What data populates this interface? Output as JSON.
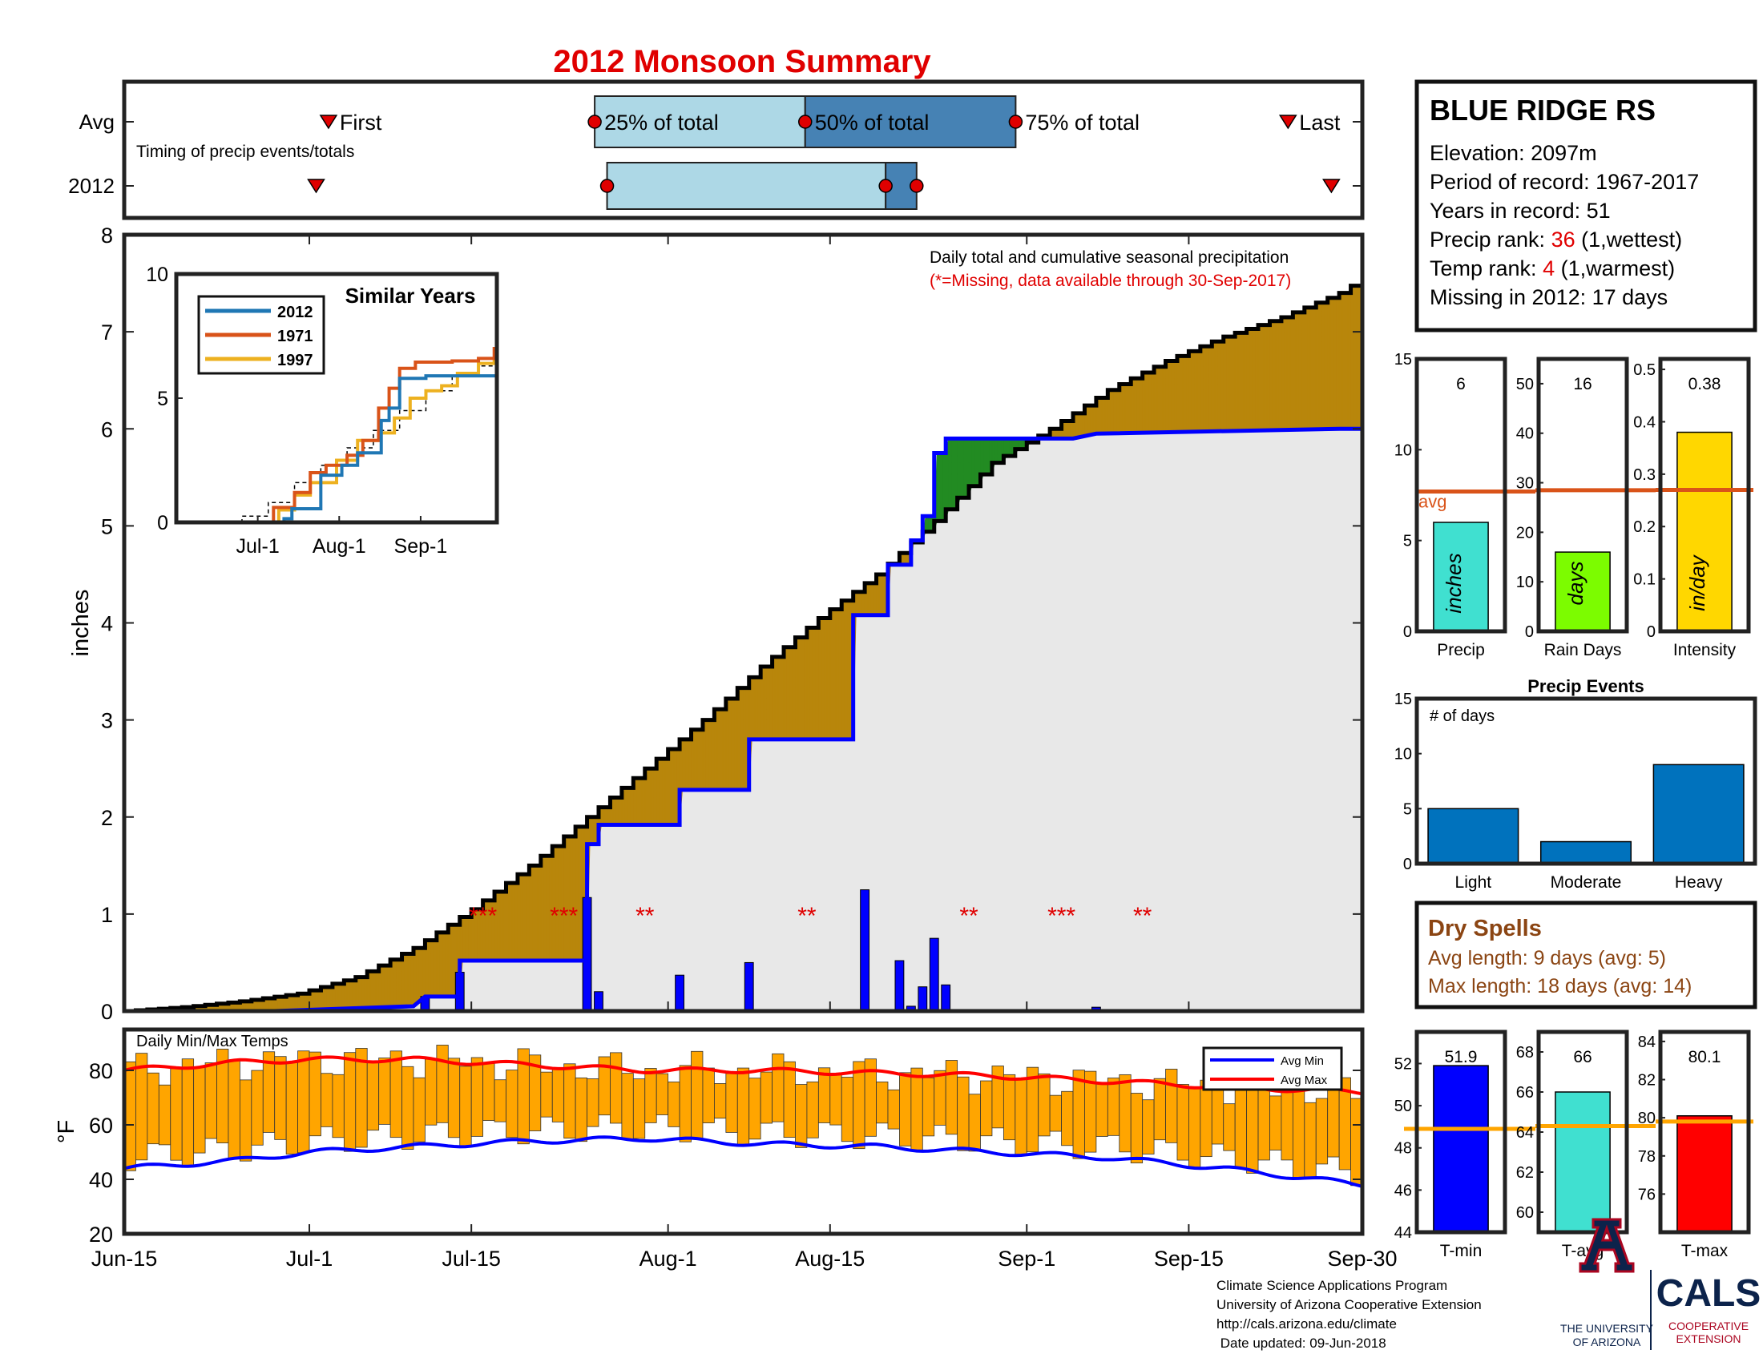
{
  "title": "2012 Monsoon Summary",
  "timing": {
    "row_labels": [
      "Avg",
      "2012"
    ],
    "note": "Timing of precip events/totals",
    "first_label": "First",
    "last_label": "Last",
    "q25_label": "25% of total",
    "q50_label": "50% of total",
    "q75_label": "75% of total",
    "avg": {
      "first": 16.5,
      "q25": 38,
      "q50": 55,
      "q75": 72,
      "last": 94
    },
    "y2012": {
      "first": 15.5,
      "q25": 39,
      "q50": 61.5,
      "q75": 64,
      "last": 97.5
    }
  },
  "chart_data": [
    {
      "type": "area",
      "id": "main",
      "xlabel": "",
      "ylabel": "inches",
      "ylim": [
        0,
        8
      ],
      "yticks": [
        0,
        1,
        2,
        3,
        4,
        5,
        6,
        7,
        8
      ],
      "xlim": [
        0,
        107
      ],
      "xticks": [
        {
          "x": 0,
          "label": "Jun-15"
        },
        {
          "x": 16,
          "label": "Jul-1"
        },
        {
          "x": 30,
          "label": "Jul-15"
        },
        {
          "x": 47,
          "label": "Aug-1"
        },
        {
          "x": 61,
          "label": "Aug-15"
        },
        {
          "x": 78,
          "label": "Sep-1"
        },
        {
          "x": 92,
          "label": "Sep-15"
        },
        {
          "x": 107,
          "label": "Sep-30"
        }
      ],
      "annotation_title": "Daily total and cumulative seasonal precipitation",
      "annotation_missing": "(*=Missing, data available through 30-Sep-2017)",
      "avg_cumulative": [
        [
          0,
          0
        ],
        [
          5,
          0.04
        ],
        [
          10,
          0.1
        ],
        [
          15,
          0.18
        ],
        [
          20,
          0.35
        ],
        [
          25,
          0.65
        ],
        [
          30,
          1.05
        ],
        [
          35,
          1.5
        ],
        [
          40,
          2.0
        ],
        [
          45,
          2.5
        ],
        [
          50,
          3.0
        ],
        [
          55,
          3.55
        ],
        [
          60,
          4.05
        ],
        [
          65,
          4.5
        ],
        [
          70,
          5.05
        ],
        [
          75,
          5.65
        ],
        [
          80,
          6.0
        ],
        [
          85,
          6.4
        ],
        [
          90,
          6.7
        ],
        [
          95,
          6.95
        ],
        [
          100,
          7.15
        ],
        [
          105,
          7.4
        ],
        [
          107,
          7.55
        ]
      ],
      "y2012_cumulative": [
        [
          0,
          0
        ],
        [
          13,
          0
        ],
        [
          25,
          0.05
        ],
        [
          26,
          0.15
        ],
        [
          29,
          0.15
        ],
        [
          29,
          0.52
        ],
        [
          40,
          0.52
        ],
        [
          40,
          1.72
        ],
        [
          41,
          1.72
        ],
        [
          41,
          1.92
        ],
        [
          48,
          1.92
        ],
        [
          48,
          2.28
        ],
        [
          54,
          2.28
        ],
        [
          54,
          2.8
        ],
        [
          63,
          2.8
        ],
        [
          63,
          4.08
        ],
        [
          66,
          4.08
        ],
        [
          66,
          4.6
        ],
        [
          68,
          4.6
        ],
        [
          68,
          4.85
        ],
        [
          69,
          4.85
        ],
        [
          69,
          5.1
        ],
        [
          70,
          5.1
        ],
        [
          70,
          5.75
        ],
        [
          71,
          5.75
        ],
        [
          71,
          5.9
        ],
        [
          80,
          5.9
        ],
        [
          82,
          5.9
        ],
        [
          84,
          5.95
        ],
        [
          105,
          6.0
        ],
        [
          107,
          6.0
        ]
      ],
      "daily": [
        [
          26,
          0.15
        ],
        [
          29,
          0.4
        ],
        [
          40,
          1.17
        ],
        [
          41,
          0.2
        ],
        [
          48,
          0.37
        ],
        [
          54,
          0.5
        ],
        [
          64,
          1.25
        ],
        [
          67,
          0.52
        ],
        [
          68,
          0.05
        ],
        [
          69,
          0.25
        ],
        [
          70,
          0.75
        ],
        [
          71,
          0.27
        ],
        [
          84,
          0.04
        ]
      ],
      "missing": [
        {
          "x": 31,
          "text": "***"
        },
        {
          "x": 38,
          "text": "***"
        },
        {
          "x": 45,
          "text": "**"
        },
        {
          "x": 59,
          "text": "**"
        },
        {
          "x": 73,
          "text": "**"
        },
        {
          "x": 81,
          "text": "***"
        },
        {
          "x": 88,
          "text": "**"
        }
      ]
    },
    {
      "type": "line",
      "id": "similar",
      "title": "Similar Years",
      "ylim": [
        0,
        10
      ],
      "yticks": [
        0,
        5,
        10
      ],
      "xticks": [
        {
          "x": 16,
          "label": "Jul-1"
        },
        {
          "x": 47,
          "label": "Aug-1"
        },
        {
          "x": 78,
          "label": "Sep-1"
        }
      ],
      "xlim": [
        -15,
        107
      ],
      "series": [
        {
          "name": "2012",
          "color": "#1f77b4",
          "points": [
            [
              -15,
              0
            ],
            [
              13,
              0
            ],
            [
              26,
              0.15
            ],
            [
              29,
              0.55
            ],
            [
              40,
              1.9
            ],
            [
              41,
              1.9
            ],
            [
              48,
              2.3
            ],
            [
              54,
              2.8
            ],
            [
              63,
              4.1
            ],
            [
              66,
              4.6
            ],
            [
              70,
              5.8
            ],
            [
              80,
              5.9
            ],
            [
              107,
              6.0
            ]
          ]
        },
        {
          "name": "1971",
          "color": "#d95319",
          "points": [
            [
              -15,
              0
            ],
            [
              16,
              0
            ],
            [
              22,
              0.6
            ],
            [
              30,
              1.2
            ],
            [
              36,
              2.0
            ],
            [
              42,
              2.3
            ],
            [
              50,
              2.7
            ],
            [
              56,
              3.3
            ],
            [
              62,
              4.6
            ],
            [
              66,
              5.4
            ],
            [
              70,
              6.2
            ],
            [
              76,
              6.45
            ],
            [
              90,
              6.5
            ],
            [
              100,
              6.6
            ],
            [
              106,
              7.0
            ],
            [
              107,
              8.9
            ]
          ]
        },
        {
          "name": "1997",
          "color": "#edb120",
          "points": [
            [
              -15,
              0
            ],
            [
              18,
              0
            ],
            [
              24,
              0.5
            ],
            [
              30,
              1.1
            ],
            [
              36,
              1.6
            ],
            [
              46,
              2.5
            ],
            [
              54,
              3.3
            ],
            [
              62,
              3.6
            ],
            [
              68,
              4.2
            ],
            [
              74,
              5.0
            ],
            [
              80,
              5.3
            ],
            [
              86,
              5.5
            ],
            [
              92,
              6.0
            ],
            [
              100,
              6.4
            ],
            [
              106,
              6.5
            ],
            [
              107,
              6.7
            ]
          ]
        },
        {
          "name": "",
          "color": "#000000",
          "dashed": true,
          "points": [
            [
              -15,
              0
            ],
            [
              0,
              0.02
            ],
            [
              10,
              0.25
            ],
            [
              20,
              0.8
            ],
            [
              30,
              1.6
            ],
            [
              40,
              2.3
            ],
            [
              50,
              3.0
            ],
            [
              60,
              3.7
            ],
            [
              70,
              4.5
            ],
            [
              80,
              5.3
            ],
            [
              90,
              5.9
            ],
            [
              100,
              6.3
            ],
            [
              107,
              6.6
            ]
          ]
        }
      ]
    },
    {
      "type": "bar",
      "id": "temps",
      "title": "Daily Min/Max Temps",
      "ylabel": "°F",
      "ylim": [
        20,
        95
      ],
      "yticks": [
        20,
        40,
        60,
        80
      ],
      "legend": [
        "Avg Min",
        "Avg Max"
      ],
      "bar_color": "#ffa500",
      "avg_max": [
        [
          0,
          80
        ],
        [
          10,
          83
        ],
        [
          16,
          84
        ],
        [
          25,
          84
        ],
        [
          35,
          82
        ],
        [
          45,
          80
        ],
        [
          55,
          80
        ],
        [
          65,
          79
        ],
        [
          75,
          78
        ],
        [
          85,
          76
        ],
        [
          95,
          74
        ],
        [
          107,
          72
        ]
      ],
      "avg_min": [
        [
          0,
          44
        ],
        [
          10,
          47
        ],
        [
          16,
          50
        ],
        [
          25,
          52
        ],
        [
          35,
          54
        ],
        [
          45,
          55
        ],
        [
          55,
          53
        ],
        [
          65,
          52
        ],
        [
          75,
          50
        ],
        [
          85,
          48
        ],
        [
          95,
          44
        ],
        [
          107,
          38
        ]
      ]
    },
    {
      "type": "bar",
      "id": "precip",
      "categories": [
        "Precip"
      ],
      "values": [
        6
      ],
      "value_label": "6",
      "inner_label": "inches",
      "avg": 7.7,
      "avg_label": "avg",
      "ylim": [
        0,
        15
      ],
      "yticks": [
        0,
        5,
        10,
        15
      ],
      "color": "#40e0d0"
    },
    {
      "type": "bar",
      "id": "raindays",
      "categories": [
        "Rain Days"
      ],
      "values": [
        16
      ],
      "value_label": "16",
      "inner_label": "days",
      "avg": 28.5,
      "ylim": [
        0,
        55
      ],
      "yticks": [
        0,
        10,
        20,
        30,
        40,
        50
      ],
      "color": "#7cfc00"
    },
    {
      "type": "bar",
      "id": "intensity",
      "categories": [
        "Intensity"
      ],
      "values": [
        0.38
      ],
      "value_label": "0.38",
      "inner_label": "in/day",
      "avg": 0.27,
      "ylim": [
        0,
        0.52
      ],
      "yticks": [
        0,
        0.1,
        0.2,
        0.3,
        0.4,
        0.5
      ],
      "color": "#ffd700"
    },
    {
      "type": "bar",
      "id": "events",
      "title": "Precip Events",
      "annotation": "# of days",
      "categories": [
        "Light",
        "Moderate",
        "Heavy"
      ],
      "values": [
        5,
        2,
        9
      ],
      "ylim": [
        0,
        15
      ],
      "yticks": [
        0,
        5,
        10,
        15
      ],
      "color": "#0072bd"
    },
    {
      "type": "bar",
      "id": "tmin",
      "categories": [
        "T-min"
      ],
      "values": [
        51.9
      ],
      "value_label": "51.9",
      "avg": 48.9,
      "ylim": [
        44,
        53.5
      ],
      "yticks": [
        44,
        46,
        48,
        50,
        52
      ],
      "color": "#0000ff"
    },
    {
      "type": "bar",
      "id": "tavg",
      "categories": [
        "T-avg"
      ],
      "values": [
        66
      ],
      "value_label": "66",
      "avg": 64.3,
      "ylim": [
        59,
        69
      ],
      "yticks": [
        60,
        62,
        64,
        66,
        68
      ],
      "color": "#40e0d0"
    },
    {
      "type": "bar",
      "id": "tmax",
      "categories": [
        "T-max"
      ],
      "values": [
        80.1
      ],
      "value_label": "80.1",
      "avg": 79.8,
      "ylim": [
        74,
        84.5
      ],
      "yticks": [
        76,
        78,
        80,
        82,
        84
      ],
      "color": "#ff0000"
    }
  ],
  "station": {
    "name": "BLUE RIDGE RS",
    "elevation": "Elevation: 2097m",
    "period": "Period of record: 1967-2017",
    "years": "Years in record: 51",
    "precip_rank_prefix": "Precip rank: ",
    "precip_rank": "36",
    "precip_rank_suffix": " (1,wettest)",
    "temp_rank_prefix": "Temp rank: ",
    "temp_rank": "4",
    "temp_rank_suffix": " (1,warmest)",
    "missing": "Missing in 2012: 17 days"
  },
  "dry_spells": {
    "title": "Dry Spells",
    "avg_length": "Avg length: 9 days (avg: 5)",
    "max_length": "Max length: 18 days (avg: 14)"
  },
  "footer": {
    "line1": "Climate Science Applications Program",
    "line2": "University of Arizona Cooperative Extension",
    "line3": "http://cals.arizona.edu/climate",
    "line4": " Date updated: 09-Jun-2018",
    "ua_line1": "THE UNIVERSITY",
    "ua_line2": "OF ARIZONA",
    "cals": "CALS",
    "cals_sub1": "COOPERATIVE",
    "cals_sub2": "EXTENSION"
  },
  "colors": {
    "tan": "#b8860b",
    "green": "#228b22",
    "blue": "#0000ff",
    "red": "#ff0000",
    "gray": "#e8e8e8"
  }
}
